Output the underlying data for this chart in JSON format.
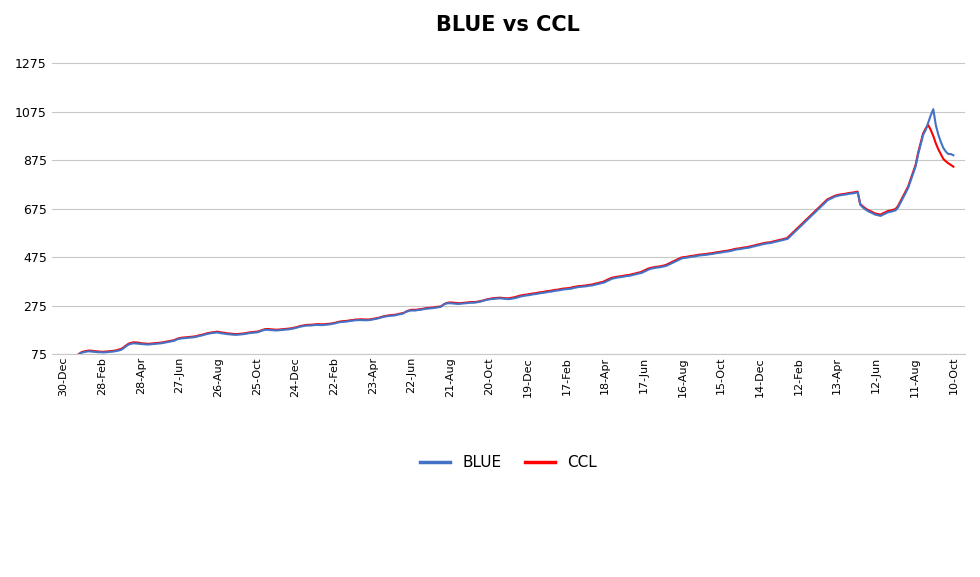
{
  "title": "BLUE vs CCL",
  "title_fontsize": 15,
  "title_fontweight": "bold",
  "background_color": "#ffffff",
  "grid_color": "#c8c8c8",
  "blue_color": "#4472C4",
  "ccl_color": "#FF0000",
  "blue_linewidth": 1.5,
  "ccl_linewidth": 1.5,
  "legend_labels": [
    "BLUE",
    "CCL"
  ],
  "ylim": [
    75,
    1350
  ],
  "yticks": [
    75,
    275,
    475,
    675,
    875,
    1075,
    1275
  ],
  "xtick_labels": [
    "30-Dec",
    "28-Feb",
    "28-Apr",
    "27-Jun",
    "26-Aug",
    "25-Oct",
    "24-Dec",
    "22-Feb",
    "23-Apr",
    "22-Jun",
    "21-Aug",
    "20-Oct",
    "19-Dec",
    "17-Feb",
    "18-Apr",
    "17-Jun",
    "16-Aug",
    "15-Oct",
    "14-Dec",
    "12-Feb",
    "13-Apr",
    "12-Jun",
    "11-Aug",
    "10-Oct"
  ],
  "blue_values": [
    63,
    63,
    64,
    65,
    66,
    68,
    72,
    80,
    83,
    85,
    87,
    86,
    85,
    84,
    83,
    83,
    82,
    83,
    84,
    85,
    86,
    88,
    90,
    93,
    100,
    108,
    115,
    118,
    120,
    119,
    118,
    117,
    116,
    115,
    115,
    116,
    117,
    118,
    119,
    120,
    122,
    124,
    126,
    128,
    130,
    135,
    138,
    140,
    141,
    142,
    143,
    144,
    145,
    147,
    150,
    152,
    155,
    158,
    160,
    162,
    163,
    165,
    163,
    161,
    160,
    158,
    157,
    156,
    155,
    155,
    156,
    157,
    158,
    160,
    162,
    163,
    164,
    165,
    168,
    172,
    175,
    176,
    175,
    174,
    173,
    173,
    174,
    175,
    176,
    177,
    178,
    180,
    182,
    185,
    188,
    190,
    192,
    193,
    193,
    194,
    195,
    196,
    195,
    195,
    196,
    197,
    198,
    200,
    202,
    205,
    207,
    208,
    209,
    210,
    212,
    213,
    215,
    215,
    216,
    215,
    215,
    215,
    216,
    218,
    220,
    222,
    225,
    228,
    230,
    232,
    233,
    234,
    235,
    238,
    240,
    242,
    248,
    252,
    255,
    255,
    255,
    257,
    258,
    260,
    262,
    263,
    264,
    265,
    267,
    268,
    270,
    278,
    283,
    285,
    285,
    284,
    283,
    282,
    283,
    284,
    285,
    286,
    287,
    287,
    288,
    290,
    292,
    295,
    298,
    300,
    302,
    303,
    304,
    305,
    305,
    304,
    303,
    302,
    303,
    305,
    307,
    310,
    313,
    315,
    317,
    318,
    320,
    322,
    323,
    325,
    327,
    328,
    330,
    332,
    333,
    335,
    337,
    338,
    340,
    342,
    343,
    344,
    345,
    348,
    350,
    352,
    353,
    354,
    355,
    357,
    358,
    360,
    363,
    365,
    368,
    370,
    375,
    380,
    385,
    388,
    390,
    392,
    393,
    395,
    397,
    398,
    400,
    403,
    405,
    408,
    410,
    415,
    420,
    425,
    428,
    430,
    432,
    433,
    435,
    437,
    440,
    445,
    450,
    455,
    460,
    465,
    470,
    472,
    473,
    475,
    477,
    478,
    480,
    482,
    483,
    484,
    485,
    487,
    488,
    490,
    492,
    493,
    495,
    497,
    498,
    500,
    502,
    505,
    507,
    508,
    510,
    512,
    513,
    515,
    518,
    520,
    523,
    525,
    528,
    530,
    532,
    533,
    535,
    538,
    540,
    543,
    545,
    548,
    550,
    560,
    570,
    580,
    590,
    600,
    610,
    620,
    630,
    640,
    650,
    660,
    670,
    680,
    690,
    700,
    710,
    715,
    720,
    725,
    728,
    730,
    732,
    733,
    735,
    737,
    738,
    740,
    742,
    690,
    680,
    672,
    665,
    660,
    655,
    650,
    648,
    645,
    650,
    655,
    660,
    662,
    665,
    668,
    680,
    700,
    720,
    740,
    760,
    790,
    820,
    850,
    900,
    940,
    980,
    1000,
    1030,
    1060,
    1085,
    1020,
    980,
    950,
    925,
    910,
    900,
    900,
    895
  ],
  "ccl_values": [
    63,
    63,
    64,
    65,
    66,
    69,
    74,
    82,
    86,
    88,
    90,
    89,
    88,
    87,
    86,
    85,
    85,
    86,
    87,
    88,
    89,
    91,
    94,
    97,
    104,
    112,
    119,
    122,
    124,
    123,
    122,
    120,
    119,
    118,
    118,
    119,
    120,
    121,
    122,
    123,
    125,
    127,
    129,
    131,
    133,
    138,
    141,
    143,
    144,
    145,
    146,
    147,
    148,
    150,
    153,
    155,
    158,
    161,
    163,
    165,
    166,
    168,
    166,
    164,
    163,
    161,
    160,
    159,
    158,
    158,
    159,
    160,
    161,
    163,
    165,
    166,
    167,
    168,
    171,
    175,
    178,
    179,
    178,
    177,
    176,
    176,
    177,
    178,
    179,
    180,
    181,
    183,
    185,
    188,
    191,
    193,
    195,
    196,
    196,
    197,
    198,
    199,
    198,
    198,
    199,
    200,
    201,
    203,
    205,
    208,
    210,
    211,
    212,
    213,
    215,
    216,
    218,
    218,
    219,
    218,
    218,
    218,
    219,
    221,
    223,
    225,
    228,
    231,
    233,
    235,
    236,
    237,
    238,
    241,
    243,
    245,
    251,
    255,
    258,
    258,
    258,
    260,
    261,
    263,
    265,
    266,
    267,
    268,
    270,
    271,
    273,
    281,
    286,
    288,
    288,
    287,
    286,
    285,
    286,
    287,
    288,
    289,
    290,
    290,
    291,
    293,
    295,
    298,
    301,
    303,
    305,
    306,
    307,
    308,
    307,
    306,
    305,
    306,
    308,
    310,
    313,
    316,
    318,
    320,
    321,
    323,
    325,
    326,
    328,
    330,
    331,
    333,
    335,
    336,
    338,
    340,
    341,
    343,
    345,
    346,
    347,
    348,
    351,
    353,
    355,
    356,
    357,
    358,
    360,
    361,
    363,
    366,
    368,
    371,
    373,
    378,
    383,
    388,
    391,
    393,
    395,
    396,
    398,
    400,
    401,
    403,
    406,
    408,
    411,
    413,
    418,
    423,
    428,
    431,
    433,
    435,
    436,
    438,
    440,
    443,
    448,
    453,
    458,
    463,
    468,
    473,
    475,
    476,
    478,
    480,
    481,
    483,
    485,
    486,
    487,
    488,
    490,
    491,
    493,
    495,
    496,
    498,
    500,
    501,
    503,
    505,
    508,
    510,
    511,
    513,
    515,
    516,
    518,
    521,
    523,
    526,
    528,
    531,
    533,
    535,
    536,
    538,
    541,
    543,
    546,
    548,
    551,
    553,
    563,
    573,
    583,
    593,
    603,
    613,
    623,
    633,
    643,
    653,
    663,
    673,
    683,
    693,
    703,
    713,
    718,
    723,
    728,
    731,
    733,
    735,
    736,
    738,
    740,
    741,
    743,
    745,
    695,
    685,
    677,
    670,
    665,
    660,
    655,
    653,
    650,
    655,
    660,
    665,
    667,
    670,
    673,
    685,
    705,
    725,
    745,
    765,
    795,
    825,
    855,
    905,
    945,
    985,
    1005,
    1020,
    1000,
    975,
    945,
    920,
    900,
    880,
    870,
    862,
    855,
    848
  ]
}
